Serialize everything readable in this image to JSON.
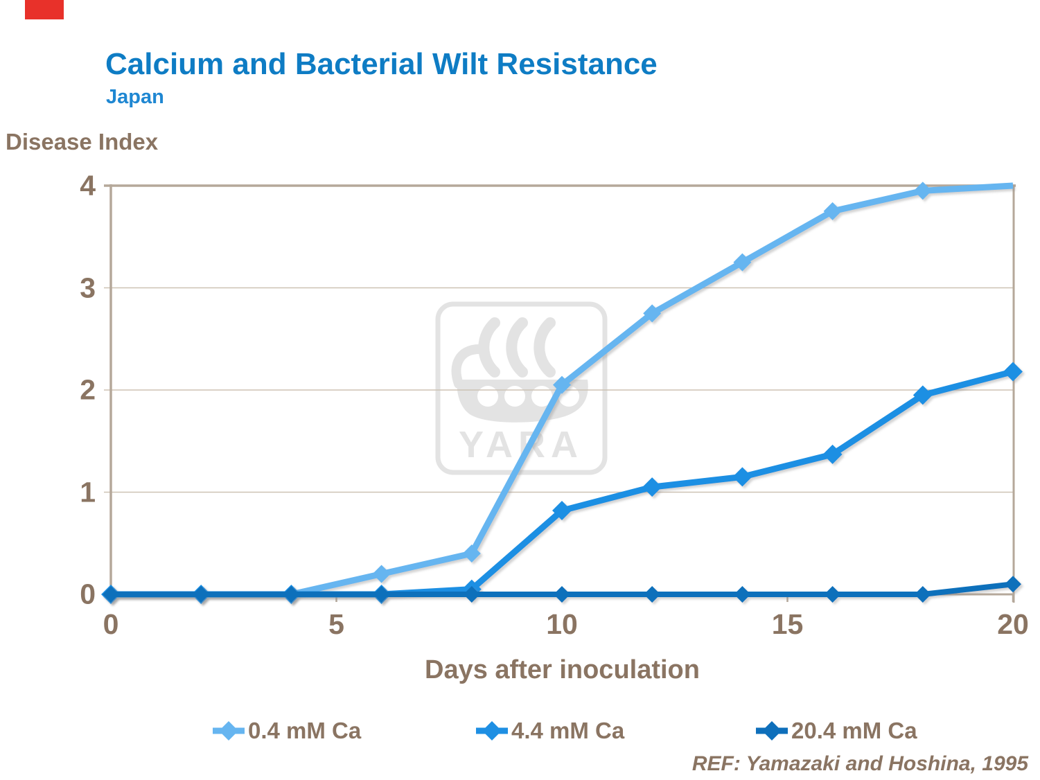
{
  "page": {
    "title": "Calcium and Bacterial Wilt Resistance",
    "subtitle": "Japan",
    "reference": "REF: Yamazaki and Hoshina, 1995"
  },
  "colors": {
    "title_blue": "#0e7cc4",
    "subtitle_blue": "#1f87d2",
    "text_brown": "#8a7462",
    "axis_border_tan": "#b5a89a",
    "gridline_tan": "#cdc2b4",
    "watermark_gray": "#e3e3e3",
    "flag_red": "#e8312a"
  },
  "chart_data": {
    "type": "line",
    "title": "Calcium and Bacterial Wilt Resistance",
    "subtitle": "Japan",
    "xlabel": "Days after inoculation",
    "ylabel": "Disease Index",
    "x": [
      0,
      2,
      4,
      6,
      8,
      10,
      12,
      14,
      16,
      18,
      20
    ],
    "series": [
      {
        "name": "0.4 mM Ca",
        "color": "#66b5f0",
        "values": [
          0,
          0,
          0,
          0.2,
          0.4,
          2.05,
          2.75,
          3.25,
          3.75,
          3.95,
          4
        ]
      },
      {
        "name": "4.4 mM Ca",
        "color": "#1e8fe3",
        "values": [
          0,
          0,
          0,
          0,
          0.05,
          0.82,
          1.05,
          1.15,
          1.37,
          1.95,
          2.18
        ]
      },
      {
        "name": "20.4 mM Ca",
        "color": "#0e6fbb",
        "values": [
          0,
          0,
          0,
          0,
          0,
          0,
          0,
          0,
          0,
          0,
          0.1
        ]
      }
    ],
    "x_ticks": [
      0,
      5,
      10,
      15,
      20
    ],
    "y_ticks": [
      0,
      1,
      2,
      3,
      4
    ],
    "xlim": [
      0,
      20
    ],
    "ylim": [
      0,
      4
    ],
    "grid": true,
    "legend_position": "bottom",
    "marker": "diamond",
    "watermark": "YARA"
  }
}
